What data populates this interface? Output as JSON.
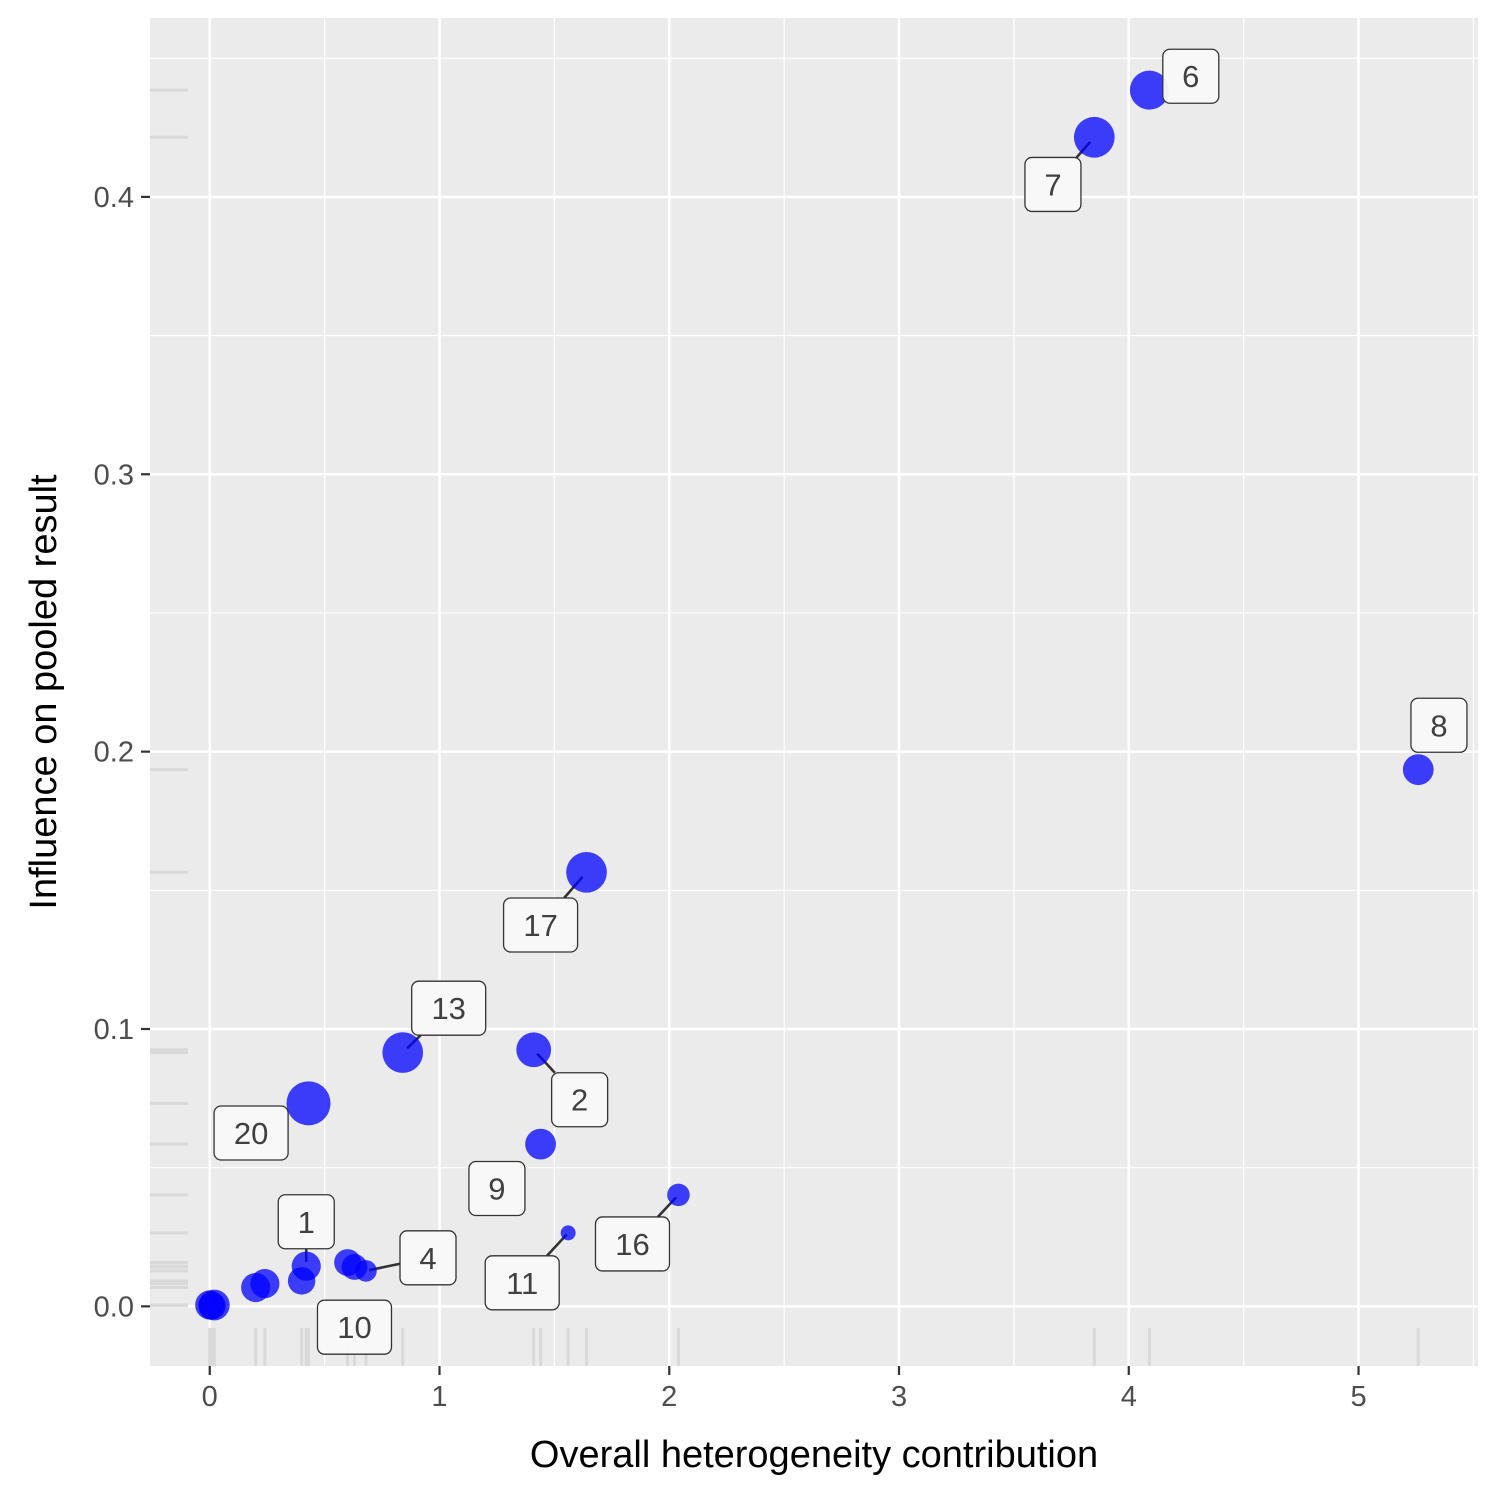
{
  "chart_data": {
    "type": "scatter",
    "xlabel": "Overall heterogeneity contribution",
    "ylabel": "Influence on pooled result",
    "xlim": [
      -0.26,
      5.52
    ],
    "ylim": [
      -0.0215,
      0.4645
    ],
    "x_ticks": [
      0,
      1,
      2,
      3,
      4,
      5
    ],
    "y_ticks": [
      0.0,
      0.1,
      0.2,
      0.3,
      0.4
    ],
    "x_tick_labels": [
      "0",
      "1",
      "2",
      "3",
      "4",
      "5"
    ],
    "y_tick_labels": [
      "0.0",
      "0.1",
      "0.2",
      "0.3",
      "0.4"
    ],
    "grid": true,
    "rug": true,
    "colors": {
      "panel": "#ebebeb",
      "grid": "#ffffff",
      "point": "#0000ff",
      "rug": "#d9d9d9",
      "label_fill": "#f9f9f9",
      "label_border": "#333333"
    },
    "points": [
      {
        "id": "1",
        "x": 0.42,
        "y": 0.0145,
        "size": 0.55,
        "label": "1"
      },
      {
        "id": "2",
        "x": 1.41,
        "y": 0.0925,
        "size": 0.72,
        "label": "2"
      },
      {
        "id": "3",
        "x": 0.0,
        "y": 0.0005,
        "size": 0.55
      },
      {
        "id": "4",
        "x": 0.68,
        "y": 0.0128,
        "size": 0.32,
        "label": "4"
      },
      {
        "id": "5",
        "x": 0.02,
        "y": 0.0005,
        "size": 0.6
      },
      {
        "id": "6",
        "x": 4.09,
        "y": 0.4385,
        "size": 0.85,
        "label": "6"
      },
      {
        "id": "7",
        "x": 3.85,
        "y": 0.4215,
        "size": 0.9,
        "label": "7"
      },
      {
        "id": "8",
        "x": 5.26,
        "y": 0.1935,
        "size": 0.6,
        "label": "8"
      },
      {
        "id": "9",
        "x": 1.44,
        "y": 0.0585,
        "size": 0.6,
        "label": "9"
      },
      {
        "id": "10",
        "x": 0.63,
        "y": 0.0142,
        "size": 0.45,
        "label": "10"
      },
      {
        "id": "11",
        "x": 1.56,
        "y": 0.0265,
        "size": 0.12,
        "label": "11"
      },
      {
        "id": "12",
        "x": 0.24,
        "y": 0.0082,
        "size": 0.55
      },
      {
        "id": "13",
        "x": 0.84,
        "y": 0.0915,
        "size": 0.9,
        "label": "13"
      },
      {
        "id": "14",
        "x": 0.2,
        "y": 0.0068,
        "size": 0.55
      },
      {
        "id": "15",
        "x": 0.4,
        "y": 0.0092,
        "size": 0.5
      },
      {
        "id": "16",
        "x": 2.04,
        "y": 0.0402,
        "size": 0.35,
        "label": "16"
      },
      {
        "id": "17",
        "x": 1.64,
        "y": 0.1565,
        "size": 0.9,
        "label": "17"
      },
      {
        "id": "18",
        "x": 0.6,
        "y": 0.0158,
        "size": 0.48
      },
      {
        "id": "19",
        "x": 0.01,
        "y": 0.0002,
        "size": 0.5
      },
      {
        "id": "20",
        "x": 0.43,
        "y": 0.0732,
        "size": 1.0,
        "label": "20"
      }
    ],
    "labels": [
      {
        "text": "6",
        "x": 4.27,
        "y": 0.4435,
        "anchor_point": "6",
        "leader": false
      },
      {
        "text": "7",
        "x": 3.67,
        "y": 0.4045,
        "anchor_point": "7",
        "leader": true
      },
      {
        "text": "8",
        "x": 5.35,
        "y": 0.2095,
        "anchor_point": "8",
        "leader": false
      },
      {
        "text": "17",
        "x": 1.44,
        "y": 0.1375,
        "anchor_point": "17",
        "leader": true
      },
      {
        "text": "13",
        "x": 1.04,
        "y": 0.1075,
        "anchor_point": "13",
        "leader": true
      },
      {
        "text": "2",
        "x": 1.61,
        "y": 0.0745,
        "anchor_point": "2",
        "leader": true
      },
      {
        "text": "20",
        "x": 0.18,
        "y": 0.0625,
        "anchor_point": "20",
        "leader": false
      },
      {
        "text": "9",
        "x": 1.25,
        "y": 0.0425,
        "anchor_point": "9",
        "leader": false
      },
      {
        "text": "1",
        "x": 0.42,
        "y": 0.0305,
        "anchor_point": "1",
        "leader": true
      },
      {
        "text": "4",
        "x": 0.95,
        "y": 0.0175,
        "anchor_point": "4",
        "leader": true
      },
      {
        "text": "16",
        "x": 1.84,
        "y": 0.0225,
        "anchor_point": "16",
        "leader": true
      },
      {
        "text": "11",
        "x": 1.36,
        "y": 0.0085,
        "anchor_point": "11",
        "leader": true
      },
      {
        "text": "10",
        "x": 0.63,
        "y": -0.0075,
        "anchor_point": "10",
        "leader": false
      }
    ]
  }
}
